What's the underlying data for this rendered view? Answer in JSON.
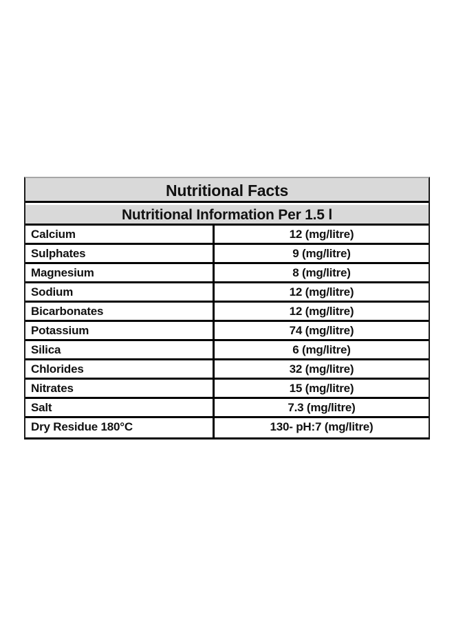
{
  "page": {
    "background_color": "#ffffff"
  },
  "table": {
    "title": "Nutritional Facts",
    "subtitle": "Nutritional Information Per 1.5 l",
    "header_bg_color": "#d9d9d9",
    "border_color": "#000000",
    "rows": [
      {
        "label": "Calcium",
        "value": "12 (mg/litre)"
      },
      {
        "label": "Sulphates",
        "value": "9 (mg/litre)"
      },
      {
        "label": "Magnesium",
        "value": "8 (mg/litre)"
      },
      {
        "label": "Sodium",
        "value": "12 (mg/litre)"
      },
      {
        "label": "Bicarbonates",
        "value": "12 (mg/litre)"
      },
      {
        "label": "Potassium",
        "value": "74 (mg/litre)"
      },
      {
        "label": "Silica",
        "value": "6 (mg/litre)"
      },
      {
        "label": "Chlorides",
        "value": "32 (mg/litre)"
      },
      {
        "label": "Nitrates",
        "value": "15 (mg/litre)"
      },
      {
        "label": "Salt",
        "value": "7.3 (mg/litre)"
      },
      {
        "label": "Dry Residue 180°C",
        "value": "130- pH:7 (mg/litre)"
      }
    ]
  }
}
